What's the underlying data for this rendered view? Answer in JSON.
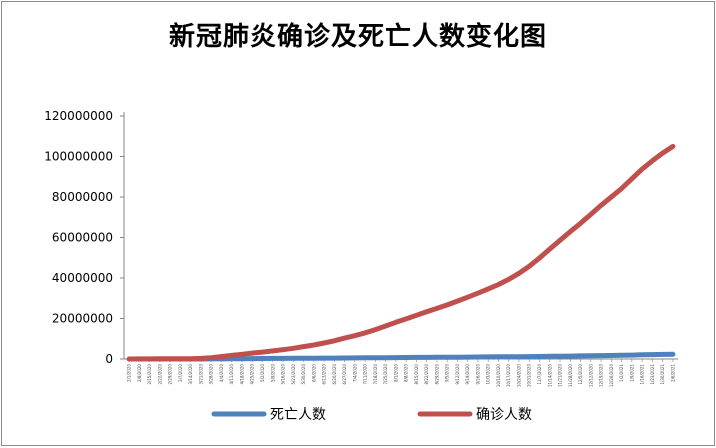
{
  "chart_data": {
    "type": "line",
    "title": "新冠肺炎确诊及死亡人数变化图",
    "xlabel": "",
    "ylabel": "",
    "ylim": [
      0,
      120000000
    ],
    "yticks": [
      "0",
      "20000000",
      "40000000",
      "60000000",
      "80000000",
      "100000000",
      "120000000"
    ],
    "grid": false,
    "legend": "bottom",
    "x": [
      "2/1/2020",
      "2/8/2020",
      "2/15/2020",
      "2/22/2020",
      "2/29/2020",
      "3/7/2020",
      "3/14/2020",
      "3/21/2020",
      "3/28/2020",
      "4/4/2020",
      "4/11/2020",
      "4/18/2020",
      "4/25/2020",
      "5/2/2020",
      "5/9/2020",
      "5/16/2020",
      "5/23/2020",
      "5/30/2020",
      "6/6/2020",
      "6/13/2020",
      "6/20/2020",
      "6/27/2020",
      "7/4/2020",
      "7/11/2020",
      "7/18/2020",
      "7/25/2020",
      "8/1/2020",
      "8/8/2020",
      "8/15/2020",
      "8/22/2020",
      "8/29/2020",
      "9/5/2020",
      "9/12/2020",
      "9/19/2020",
      "9/26/2020",
      "10/3/2020",
      "10/10/2020",
      "10/17/2020",
      "10/24/2020",
      "10/31/2020",
      "11/7/2020",
      "11/14/2020",
      "11/21/2020",
      "11/28/2020",
      "12/5/2020",
      "12/12/2020",
      "12/19/2020",
      "12/26/2020",
      "1/2/2021",
      "1/9/2021",
      "1/16/2021",
      "1/23/2021",
      "1/30/2021",
      "2/6/2021"
    ],
    "series": [
      {
        "name": "死亡人数",
        "color": "#4f81bd",
        "values": [
          300,
          700,
          1500,
          2500,
          3000,
          3500,
          6000,
          13000,
          30000,
          65000,
          110000,
          160000,
          200000,
          240000,
          280000,
          310000,
          340000,
          370000,
          400000,
          430000,
          460000,
          490000,
          530000,
          570000,
          610000,
          650000,
          690000,
          730000,
          770000,
          800000,
          840000,
          880000,
          910000,
          950000,
          990000,
          1030000,
          1070000,
          1110000,
          1150000,
          1190000,
          1250000,
          1310000,
          1370000,
          1450000,
          1520000,
          1600000,
          1670000,
          1750000,
          1850000,
          1950000,
          2050000,
          2150000,
          2250000,
          2300000
        ]
      },
      {
        "name": "确诊人数",
        "color": "#c0504d",
        "values": [
          12000,
          35000,
          70000,
          80000,
          90000,
          110000,
          160000,
          310000,
          660000,
          1200000,
          1800000,
          2300000,
          2900000,
          3400000,
          4000000,
          4600000,
          5300000,
          6100000,
          6900000,
          7900000,
          9000000,
          10300000,
          11500000,
          12900000,
          14500000,
          16300000,
          18100000,
          19800000,
          21600000,
          23300000,
          25000000,
          26700000,
          28600000,
          30500000,
          32500000,
          34600000,
          36800000,
          39300000,
          42300000,
          45800000,
          49900000,
          54300000,
          58600000,
          62900000,
          67000000,
          71400000,
          75900000,
          80000000,
          84200000,
          89000000,
          93800000,
          97900000,
          101700000,
          105000000
        ]
      }
    ]
  }
}
